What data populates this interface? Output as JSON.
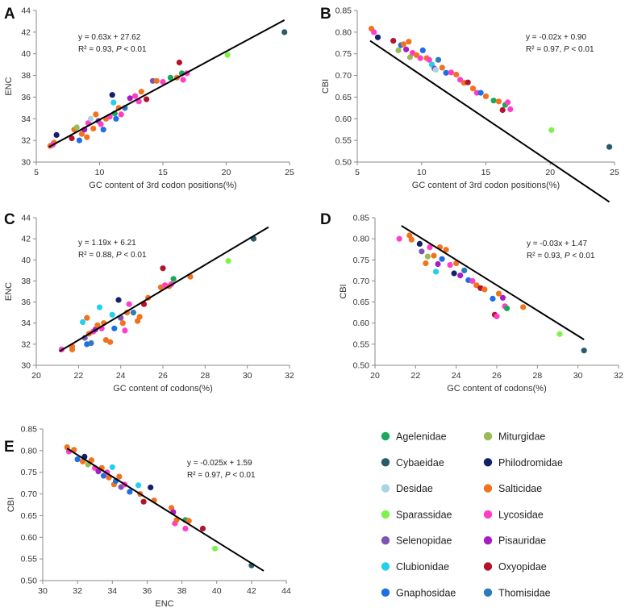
{
  "families": [
    {
      "name": "Agelenidae",
      "color": "#1aa85a"
    },
    {
      "name": "Miturgidae",
      "color": "#99bb55"
    },
    {
      "name": "Cybaeidae",
      "color": "#2b5a6a"
    },
    {
      "name": "Philodromidae",
      "color": "#14206a"
    },
    {
      "name": "Desidae",
      "color": "#a8d4e3"
    },
    {
      "name": "Salticidae",
      "color": "#f0731e"
    },
    {
      "name": "Sparassidae",
      "color": "#7ef24a"
    },
    {
      "name": "Lycosidae",
      "color": "#ff3ec8"
    },
    {
      "name": "Selenopidae",
      "color": "#7a55b4"
    },
    {
      "name": "Pisauridae",
      "color": "#a81cc4"
    },
    {
      "name": "Clubionidae",
      "color": "#22cfee"
    },
    {
      "name": "Oxyopidae",
      "color": "#b5122b"
    },
    {
      "name": "Gnaphosidae",
      "color": "#1e6ee6"
    },
    {
      "name": "Thomisidae",
      "color": "#2f7ab8"
    }
  ],
  "chart_data": [
    {
      "panel": "A",
      "type": "scatter",
      "xlabel": "GC content of 3rd codon positions(%)",
      "ylabel": "ENC",
      "xlim": [
        5,
        25
      ],
      "ylim": [
        30,
        44
      ],
      "xticks": [
        5,
        10,
        15,
        20,
        25
      ],
      "yticks": [
        30,
        32,
        34,
        36,
        38,
        40,
        42,
        44
      ],
      "fit": {
        "slope": 0.63,
        "intercept": 27.62,
        "x_from": 6,
        "x_to": 24.6
      },
      "equation": "y = 0.63x + 27.62",
      "r2_text": "R² = 0.93, ",
      "p_text": "P < 0.01",
      "points": [
        {
          "x": 6.1,
          "y": 31.5,
          "f": 5
        },
        {
          "x": 6.4,
          "y": 31.8,
          "f": 5
        },
        {
          "x": 6.3,
          "y": 31.6,
          "f": 7
        },
        {
          "x": 6.6,
          "y": 32.5,
          "f": 3
        },
        {
          "x": 7.8,
          "y": 32.2,
          "f": 11
        },
        {
          "x": 8.0,
          "y": 33.0,
          "f": 5
        },
        {
          "x": 8.2,
          "y": 33.2,
          "f": 1
        },
        {
          "x": 8.4,
          "y": 32.0,
          "f": 12
        },
        {
          "x": 8.6,
          "y": 32.6,
          "f": 5
        },
        {
          "x": 8.8,
          "y": 33.0,
          "f": 9
        },
        {
          "x": 9.0,
          "y": 32.3,
          "f": 5
        },
        {
          "x": 9.1,
          "y": 33.6,
          "f": 7
        },
        {
          "x": 9.3,
          "y": 34.0,
          "f": 4
        },
        {
          "x": 9.5,
          "y": 33.1,
          "f": 5
        },
        {
          "x": 9.7,
          "y": 34.4,
          "f": 5
        },
        {
          "x": 9.9,
          "y": 33.8,
          "f": 8
        },
        {
          "x": 10.1,
          "y": 33.5,
          "f": 7
        },
        {
          "x": 10.3,
          "y": 33.0,
          "f": 12
        },
        {
          "x": 10.5,
          "y": 34.0,
          "f": 5
        },
        {
          "x": 10.8,
          "y": 34.2,
          "f": 7
        },
        {
          "x": 11.0,
          "y": 36.2,
          "f": 3
        },
        {
          "x": 11.1,
          "y": 35.5,
          "f": 10
        },
        {
          "x": 11.2,
          "y": 34.5,
          "f": 0
        },
        {
          "x": 11.3,
          "y": 34.0,
          "f": 12
        },
        {
          "x": 11.5,
          "y": 35.0,
          "f": 5
        },
        {
          "x": 11.7,
          "y": 34.4,
          "f": 7
        },
        {
          "x": 12.0,
          "y": 35.0,
          "f": 13
        },
        {
          "x": 12.4,
          "y": 35.9,
          "f": 9
        },
        {
          "x": 12.8,
          "y": 36.1,
          "f": 7
        },
        {
          "x": 13.1,
          "y": 35.6,
          "f": 7
        },
        {
          "x": 13.3,
          "y": 36.5,
          "f": 5
        },
        {
          "x": 13.7,
          "y": 35.8,
          "f": 11
        },
        {
          "x": 14.2,
          "y": 37.5,
          "f": 8
        },
        {
          "x": 14.5,
          "y": 37.5,
          "f": 5
        },
        {
          "x": 15.0,
          "y": 37.4,
          "f": 7
        },
        {
          "x": 15.6,
          "y": 37.8,
          "f": 0
        },
        {
          "x": 16.1,
          "y": 37.8,
          "f": 5
        },
        {
          "x": 16.3,
          "y": 39.2,
          "f": 11
        },
        {
          "x": 16.5,
          "y": 38.2,
          "f": 0
        },
        {
          "x": 16.6,
          "y": 37.6,
          "f": 7
        },
        {
          "x": 16.9,
          "y": 38.2,
          "f": 7
        },
        {
          "x": 20.1,
          "y": 39.9,
          "f": 6
        },
        {
          "x": 24.6,
          "y": 42.0,
          "f": 2
        }
      ]
    },
    {
      "panel": "B",
      "type": "scatter",
      "xlabel": "GC content of 3rd codon positions(%)",
      "ylabel": "CBI",
      "xlim": [
        5,
        25
      ],
      "ylim": [
        0.5,
        0.85
      ],
      "xticks": [
        5,
        10,
        15,
        20,
        25
      ],
      "yticks": [
        0.5,
        0.55,
        0.6,
        0.65,
        0.7,
        0.75,
        0.8,
        0.85
      ],
      "fit": {
        "slope": -0.02,
        "intercept": 0.9,
        "x_from": 6,
        "x_to": 24.6
      },
      "equation": "y = -0.02x + 0.90",
      "r2_text": "R² = 0.97, ",
      "p_text": "P < 0.01",
      "points": [
        {
          "x": 6.1,
          "y": 0.808,
          "f": 5
        },
        {
          "x": 6.3,
          "y": 0.8,
          "f": 7
        },
        {
          "x": 6.6,
          "y": 0.788,
          "f": 3
        },
        {
          "x": 7.8,
          "y": 0.78,
          "f": 11
        },
        {
          "x": 8.2,
          "y": 0.758,
          "f": 1
        },
        {
          "x": 8.4,
          "y": 0.77,
          "f": 12
        },
        {
          "x": 8.6,
          "y": 0.772,
          "f": 5
        },
        {
          "x": 8.8,
          "y": 0.76,
          "f": 9
        },
        {
          "x": 9.0,
          "y": 0.778,
          "f": 5
        },
        {
          "x": 9.1,
          "y": 0.742,
          "f": 1
        },
        {
          "x": 9.3,
          "y": 0.752,
          "f": 7
        },
        {
          "x": 9.6,
          "y": 0.747,
          "f": 5
        },
        {
          "x": 9.9,
          "y": 0.74,
          "f": 7
        },
        {
          "x": 10.1,
          "y": 0.758,
          "f": 12
        },
        {
          "x": 10.4,
          "y": 0.74,
          "f": 5
        },
        {
          "x": 10.6,
          "y": 0.736,
          "f": 7
        },
        {
          "x": 10.8,
          "y": 0.725,
          "f": 10
        },
        {
          "x": 11.0,
          "y": 0.716,
          "f": 8
        },
        {
          "x": 11.1,
          "y": 0.713,
          "f": 4
        },
        {
          "x": 11.3,
          "y": 0.736,
          "f": 13
        },
        {
          "x": 11.6,
          "y": 0.718,
          "f": 5
        },
        {
          "x": 11.9,
          "y": 0.706,
          "f": 12
        },
        {
          "x": 12.3,
          "y": 0.707,
          "f": 7
        },
        {
          "x": 12.7,
          "y": 0.702,
          "f": 5
        },
        {
          "x": 13.0,
          "y": 0.69,
          "f": 7
        },
        {
          "x": 13.3,
          "y": 0.683,
          "f": 5
        },
        {
          "x": 13.6,
          "y": 0.684,
          "f": 11
        },
        {
          "x": 14.0,
          "y": 0.67,
          "f": 5
        },
        {
          "x": 14.3,
          "y": 0.66,
          "f": 7
        },
        {
          "x": 14.6,
          "y": 0.66,
          "f": 12
        },
        {
          "x": 15.0,
          "y": 0.652,
          "f": 5
        },
        {
          "x": 15.6,
          "y": 0.642,
          "f": 0
        },
        {
          "x": 16.0,
          "y": 0.64,
          "f": 5
        },
        {
          "x": 16.3,
          "y": 0.62,
          "f": 11
        },
        {
          "x": 16.5,
          "y": 0.632,
          "f": 0
        },
        {
          "x": 16.7,
          "y": 0.638,
          "f": 7
        },
        {
          "x": 16.9,
          "y": 0.622,
          "f": 7
        },
        {
          "x": 20.1,
          "y": 0.574,
          "f": 6
        },
        {
          "x": 24.6,
          "y": 0.535,
          "f": 2
        }
      ]
    },
    {
      "panel": "C",
      "type": "scatter",
      "xlabel": "GC content of codons(%)",
      "ylabel": "ENC",
      "xlim": [
        20,
        32
      ],
      "ylim": [
        30,
        44
      ],
      "xticks": [
        20,
        22,
        24,
        26,
        28,
        30,
        32
      ],
      "yticks": [
        30,
        32,
        34,
        36,
        38,
        40,
        42,
        44
      ],
      "fit": {
        "slope": 1.19,
        "intercept": 6.21,
        "x_from": 21.1,
        "x_to": 31.0
      },
      "equation": "y = 1.19x + 6.21",
      "r2_text": "R² = 0.88, ",
      "p_text": "P < 0.01",
      "points": [
        {
          "x": 21.2,
          "y": 31.5,
          "f": 7
        },
        {
          "x": 21.7,
          "y": 31.8,
          "f": 5
        },
        {
          "x": 21.7,
          "y": 31.5,
          "f": 5
        },
        {
          "x": 22.2,
          "y": 34.1,
          "f": 10
        },
        {
          "x": 22.3,
          "y": 32.6,
          "f": 8
        },
        {
          "x": 22.4,
          "y": 34.5,
          "f": 5
        },
        {
          "x": 22.4,
          "y": 32.0,
          "f": 12
        },
        {
          "x": 22.5,
          "y": 33.0,
          "f": 5
        },
        {
          "x": 22.6,
          "y": 32.1,
          "f": 13
        },
        {
          "x": 22.7,
          "y": 33.2,
          "f": 7
        },
        {
          "x": 22.8,
          "y": 33.4,
          "f": 9
        },
        {
          "x": 22.9,
          "y": 33.8,
          "f": 5
        },
        {
          "x": 23.0,
          "y": 35.5,
          "f": 10
        },
        {
          "x": 23.1,
          "y": 33.5,
          "f": 7
        },
        {
          "x": 23.2,
          "y": 34.0,
          "f": 5
        },
        {
          "x": 23.3,
          "y": 32.4,
          "f": 5
        },
        {
          "x": 23.5,
          "y": 32.2,
          "f": 5
        },
        {
          "x": 23.6,
          "y": 34.8,
          "f": 10
        },
        {
          "x": 23.7,
          "y": 33.5,
          "f": 12
        },
        {
          "x": 23.9,
          "y": 36.2,
          "f": 3
        },
        {
          "x": 24.0,
          "y": 34.5,
          "f": 8
        },
        {
          "x": 24.1,
          "y": 34.0,
          "f": 5
        },
        {
          "x": 24.2,
          "y": 33.3,
          "f": 7
        },
        {
          "x": 24.3,
          "y": 35.0,
          "f": 5
        },
        {
          "x": 24.4,
          "y": 35.8,
          "f": 7
        },
        {
          "x": 24.6,
          "y": 35.0,
          "f": 13
        },
        {
          "x": 24.8,
          "y": 34.2,
          "f": 5
        },
        {
          "x": 24.9,
          "y": 34.6,
          "f": 5
        },
        {
          "x": 25.1,
          "y": 35.8,
          "f": 11
        },
        {
          "x": 25.3,
          "y": 36.4,
          "f": 5
        },
        {
          "x": 25.9,
          "y": 37.4,
          "f": 5
        },
        {
          "x": 26.0,
          "y": 39.2,
          "f": 11
        },
        {
          "x": 26.1,
          "y": 37.6,
          "f": 7
        },
        {
          "x": 26.3,
          "y": 37.5,
          "f": 5
        },
        {
          "x": 26.4,
          "y": 37.7,
          "f": 7
        },
        {
          "x": 26.5,
          "y": 38.2,
          "f": 0
        },
        {
          "x": 27.3,
          "y": 38.4,
          "f": 5
        },
        {
          "x": 29.1,
          "y": 39.9,
          "f": 6
        },
        {
          "x": 30.3,
          "y": 42.0,
          "f": 2
        }
      ]
    },
    {
      "panel": "D",
      "type": "scatter",
      "xlabel": "GC content of codons(%)",
      "ylabel": "CBI",
      "xlim": [
        20,
        32
      ],
      "ylim": [
        0.5,
        0.85
      ],
      "xticks": [
        20,
        22,
        24,
        26,
        28,
        30,
        32
      ],
      "yticks": [
        0.5,
        0.55,
        0.6,
        0.65,
        0.7,
        0.75,
        0.8,
        0.85
      ],
      "fit": {
        "slope": -0.03,
        "intercept": 1.47,
        "x_from": 21.3,
        "x_to": 30.3
      },
      "equation": "y = -0.03x + 1.47",
      "r2_text": "R² = 0.93, ",
      "p_text": "P < 0.01",
      "points": [
        {
          "x": 21.2,
          "y": 0.8,
          "f": 7
        },
        {
          "x": 21.7,
          "y": 0.808,
          "f": 5
        },
        {
          "x": 21.8,
          "y": 0.798,
          "f": 5
        },
        {
          "x": 22.2,
          "y": 0.788,
          "f": 3
        },
        {
          "x": 22.3,
          "y": 0.77,
          "f": 8
        },
        {
          "x": 22.5,
          "y": 0.742,
          "f": 5
        },
        {
          "x": 22.6,
          "y": 0.758,
          "f": 1
        },
        {
          "x": 22.7,
          "y": 0.78,
          "f": 7
        },
        {
          "x": 22.9,
          "y": 0.76,
          "f": 5
        },
        {
          "x": 23.0,
          "y": 0.722,
          "f": 10
        },
        {
          "x": 23.1,
          "y": 0.74,
          "f": 9
        },
        {
          "x": 23.2,
          "y": 0.78,
          "f": 5
        },
        {
          "x": 23.3,
          "y": 0.752,
          "f": 12
        },
        {
          "x": 23.5,
          "y": 0.774,
          "f": 5
        },
        {
          "x": 23.7,
          "y": 0.738,
          "f": 7
        },
        {
          "x": 23.9,
          "y": 0.718,
          "f": 3
        },
        {
          "x": 24.0,
          "y": 0.742,
          "f": 5
        },
        {
          "x": 24.2,
          "y": 0.713,
          "f": 9
        },
        {
          "x": 24.4,
          "y": 0.725,
          "f": 13
        },
        {
          "x": 24.6,
          "y": 0.702,
          "f": 12
        },
        {
          "x": 24.8,
          "y": 0.7,
          "f": 7
        },
        {
          "x": 25.0,
          "y": 0.69,
          "f": 5
        },
        {
          "x": 25.2,
          "y": 0.683,
          "f": 11
        },
        {
          "x": 25.4,
          "y": 0.68,
          "f": 5
        },
        {
          "x": 25.8,
          "y": 0.658,
          "f": 12
        },
        {
          "x": 25.9,
          "y": 0.62,
          "f": 11
        },
        {
          "x": 26.0,
          "y": 0.616,
          "f": 7
        },
        {
          "x": 26.1,
          "y": 0.67,
          "f": 5
        },
        {
          "x": 26.3,
          "y": 0.66,
          "f": 9
        },
        {
          "x": 26.4,
          "y": 0.64,
          "f": 7
        },
        {
          "x": 26.5,
          "y": 0.635,
          "f": 0
        },
        {
          "x": 27.3,
          "y": 0.638,
          "f": 5
        },
        {
          "x": 29.1,
          "y": 0.574,
          "f": 6
        },
        {
          "x": 30.3,
          "y": 0.535,
          "f": 2
        }
      ]
    },
    {
      "panel": "E",
      "type": "scatter",
      "xlabel": "ENC",
      "ylabel": "CBI",
      "xlim": [
        30,
        44
      ],
      "ylim": [
        0.5,
        0.85
      ],
      "xticks": [
        30,
        32,
        34,
        36,
        38,
        40,
        42,
        44
      ],
      "yticks": [
        0.5,
        0.55,
        0.6,
        0.65,
        0.7,
        0.75,
        0.8,
        0.85
      ],
      "fit": {
        "slope": -0.025,
        "intercept": 1.59,
        "x_from": 31.4,
        "x_to": 42.7
      },
      "equation": "y = -0.025x + 1.59",
      "r2_text": "R² = 0.97, ",
      "p_text": "P < 0.01",
      "points": [
        {
          "x": 31.4,
          "y": 0.808,
          "f": 5
        },
        {
          "x": 31.5,
          "y": 0.798,
          "f": 7
        },
        {
          "x": 31.8,
          "y": 0.802,
          "f": 5
        },
        {
          "x": 32.0,
          "y": 0.78,
          "f": 12
        },
        {
          "x": 32.3,
          "y": 0.775,
          "f": 5
        },
        {
          "x": 32.4,
          "y": 0.786,
          "f": 3
        },
        {
          "x": 32.6,
          "y": 0.768,
          "f": 1
        },
        {
          "x": 32.8,
          "y": 0.778,
          "f": 5
        },
        {
          "x": 33.0,
          "y": 0.76,
          "f": 7
        },
        {
          "x": 33.2,
          "y": 0.752,
          "f": 9
        },
        {
          "x": 33.4,
          "y": 0.76,
          "f": 5
        },
        {
          "x": 33.5,
          "y": 0.742,
          "f": 12
        },
        {
          "x": 33.7,
          "y": 0.75,
          "f": 7
        },
        {
          "x": 33.8,
          "y": 0.738,
          "f": 5
        },
        {
          "x": 34.0,
          "y": 0.762,
          "f": 10
        },
        {
          "x": 34.1,
          "y": 0.722,
          "f": 5
        },
        {
          "x": 34.2,
          "y": 0.73,
          "f": 12
        },
        {
          "x": 34.4,
          "y": 0.74,
          "f": 5
        },
        {
          "x": 34.5,
          "y": 0.716,
          "f": 8
        },
        {
          "x": 34.7,
          "y": 0.722,
          "f": 7
        },
        {
          "x": 35.0,
          "y": 0.705,
          "f": 12
        },
        {
          "x": 35.5,
          "y": 0.72,
          "f": 10
        },
        {
          "x": 35.6,
          "y": 0.7,
          "f": 5
        },
        {
          "x": 35.8,
          "y": 0.682,
          "f": 11
        },
        {
          "x": 36.2,
          "y": 0.715,
          "f": 3
        },
        {
          "x": 36.4,
          "y": 0.685,
          "f": 5
        },
        {
          "x": 37.4,
          "y": 0.668,
          "f": 5
        },
        {
          "x": 37.5,
          "y": 0.658,
          "f": 9
        },
        {
          "x": 37.6,
          "y": 0.632,
          "f": 7
        },
        {
          "x": 37.7,
          "y": 0.64,
          "f": 5
        },
        {
          "x": 38.2,
          "y": 0.64,
          "f": 0
        },
        {
          "x": 38.2,
          "y": 0.62,
          "f": 7
        },
        {
          "x": 38.4,
          "y": 0.638,
          "f": 5
        },
        {
          "x": 39.2,
          "y": 0.62,
          "f": 11
        },
        {
          "x": 39.9,
          "y": 0.574,
          "f": 6
        },
        {
          "x": 42.0,
          "y": 0.535,
          "f": 2
        }
      ]
    }
  ]
}
